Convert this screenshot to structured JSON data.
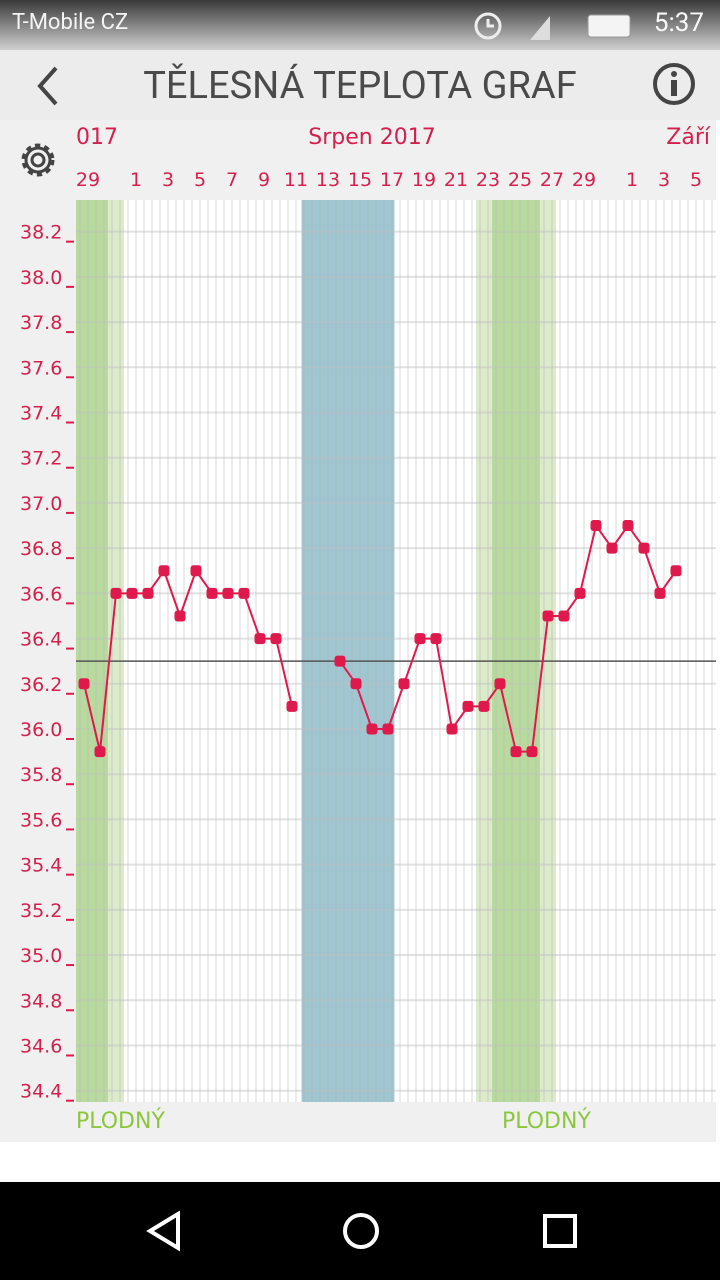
{
  "status_bar": {
    "carrier": "T-Mobile CZ",
    "time": "5:37"
  },
  "header": {
    "title": "TĚLESNÁ TEPLOTA GRAF"
  },
  "chart_data": {
    "type": "line",
    "months": [
      "017",
      "Srpen 2017",
      "Září"
    ],
    "categories": [
      "29",
      null,
      null,
      "1",
      null,
      "3",
      null,
      "5",
      null,
      "7",
      null,
      "9",
      null,
      "11",
      null,
      "13",
      null,
      "15",
      null,
      "17",
      null,
      "19",
      null,
      "21",
      null,
      "23",
      null,
      "25",
      null,
      "27",
      null,
      "29",
      null,
      null,
      "1",
      null,
      "3",
      null,
      "5",
      null
    ],
    "values": [
      36.2,
      35.9,
      36.6,
      36.6,
      36.6,
      36.7,
      36.5,
      36.7,
      36.6,
      36.6,
      36.6,
      36.4,
      36.4,
      36.1,
      null,
      null,
      36.3,
      36.2,
      36.0,
      36.0,
      36.2,
      36.4,
      36.4,
      36.0,
      36.1,
      36.1,
      36.2,
      35.9,
      35.9,
      36.5,
      36.5,
      36.6,
      36.9,
      36.8,
      36.9,
      36.8,
      36.6,
      36.7,
      null,
      null
    ],
    "color": "#e0194c",
    "ylim": [
      34.35,
      38.34
    ],
    "yticks": [
      34.4,
      34.6,
      34.8,
      {
        "value": 35.0,
        "label": "35.0"
      },
      35.2,
      35.4,
      35.6,
      35.8,
      {
        "value": 36.0,
        "label": "36.0"
      },
      36.2,
      36.4,
      36.6,
      36.8,
      {
        "value": 37.0,
        "label": "37.0"
      },
      37.2,
      37.4,
      37.6,
      37.8,
      {
        "value": 38.0,
        "label": "38.0"
      },
      38.2
    ],
    "reference_line": 36.3,
    "annotations": [
      "PLODNÝ",
      "PLODNÝ"
    ],
    "grid": true
  }
}
